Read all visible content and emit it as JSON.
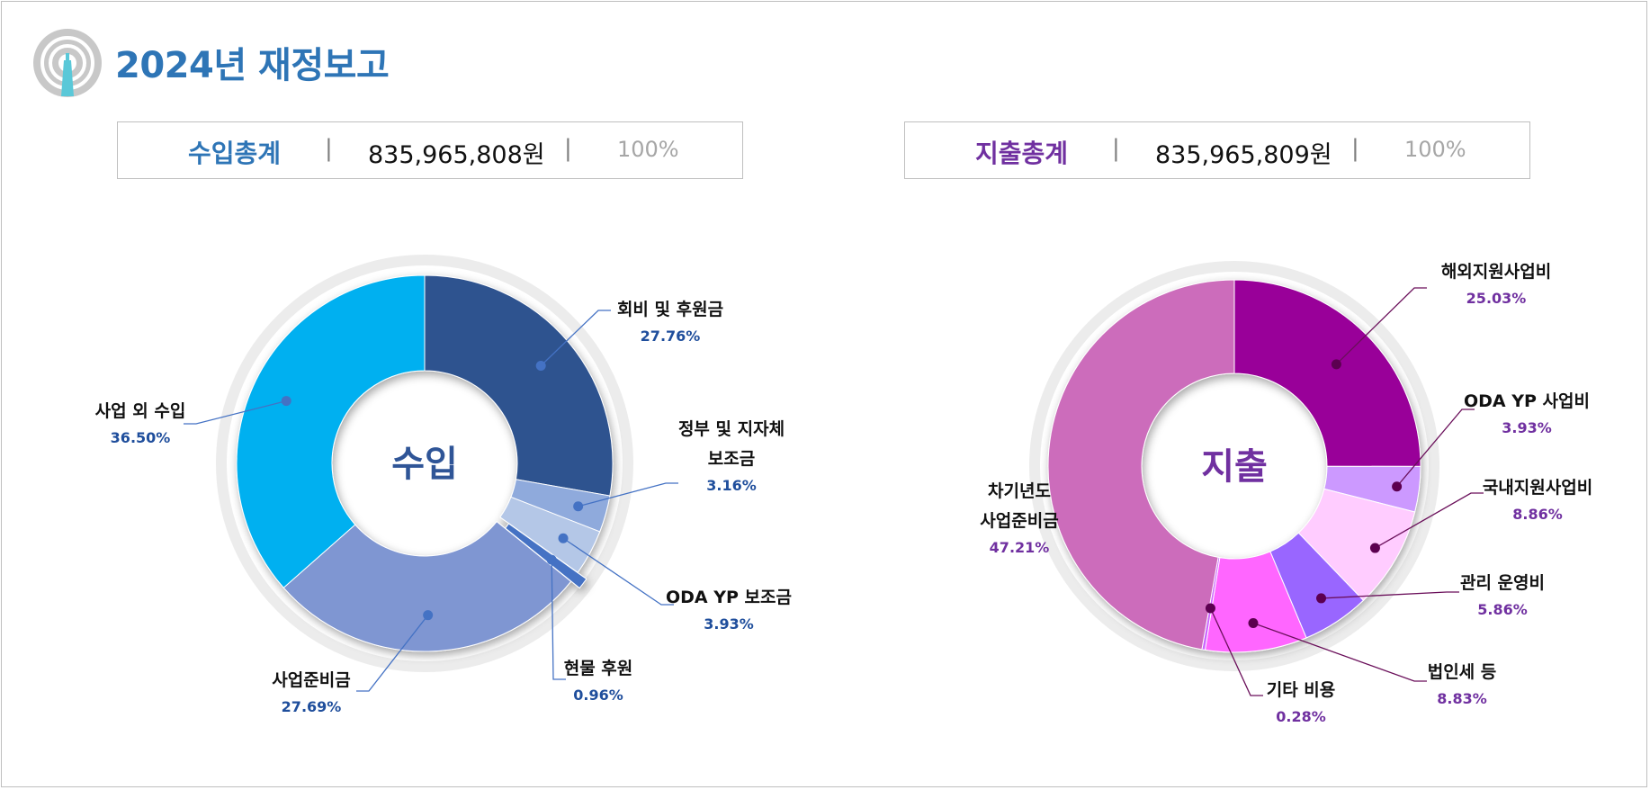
{
  "header": {
    "title": "2024년 재정보고",
    "logo_icon": "radio-tower-icon"
  },
  "summary": {
    "income": {
      "label": "수입총계",
      "amount": "835,965,808원",
      "percent": "100%",
      "color": "#2e75b6"
    },
    "expense": {
      "label": "지출총계",
      "amount": "835,965,809원",
      "percent": "100%",
      "color": "#7030a0"
    },
    "separator": "|"
  },
  "chart_data": [
    {
      "type": "pie",
      "variant": "donut",
      "title": "",
      "center_label": "수입",
      "center_color": "#2f5597",
      "label_color": "#1f4e9c",
      "slices": [
        {
          "label": "회비 및 후원금",
          "value": 27.76,
          "display": "27.76%",
          "color": "#2f528f"
        },
        {
          "label": "정부 및 지자체 보조금",
          "label_lines": [
            "정부 및 지자체",
            "보조금"
          ],
          "value": 3.16,
          "display": "3.16%",
          "color": "#8faadc"
        },
        {
          "label": "ODA YP 보조금",
          "value": 3.93,
          "display": "3.93%",
          "color": "#b4c7e7"
        },
        {
          "label": "현물 후원",
          "value": 0.96,
          "display": "0.96%",
          "color": "#4472c4"
        },
        {
          "label": "사업준비금",
          "value": 27.69,
          "display": "27.69%",
          "color": "#7f96d2"
        },
        {
          "label": "사업 외 수입",
          "value": 36.5,
          "display": "36.50%",
          "color": "#00b0f0"
        }
      ]
    },
    {
      "type": "pie",
      "variant": "donut",
      "title": "",
      "center_label": "지출",
      "center_color": "#7030a0",
      "label_color": "#7030a0",
      "slices": [
        {
          "label": "해외지원사업비",
          "value": 25.03,
          "display": "25.03%",
          "color": "#990099"
        },
        {
          "label": "ODA YP 사업비",
          "value": 3.93,
          "display": "3.93%",
          "color": "#cc99ff"
        },
        {
          "label": "국내지원사업비",
          "value": 8.86,
          "display": "8.86%",
          "color": "#ffccff"
        },
        {
          "label": "관리 운영비",
          "value": 5.86,
          "display": "5.86%",
          "color": "#9966ff"
        },
        {
          "label": "법인세 등",
          "value": 8.83,
          "display": "8.83%",
          "color": "#ff66ff"
        },
        {
          "label": "기타 비용",
          "value": 0.28,
          "display": "0.28%",
          "color": "#cc66ff"
        },
        {
          "label": "차기년도 사업준비금",
          "label_lines": [
            "차기년도",
            "사업준비금"
          ],
          "value": 47.21,
          "display": "47.21%",
          "color": "#cc6cbb"
        }
      ]
    }
  ]
}
